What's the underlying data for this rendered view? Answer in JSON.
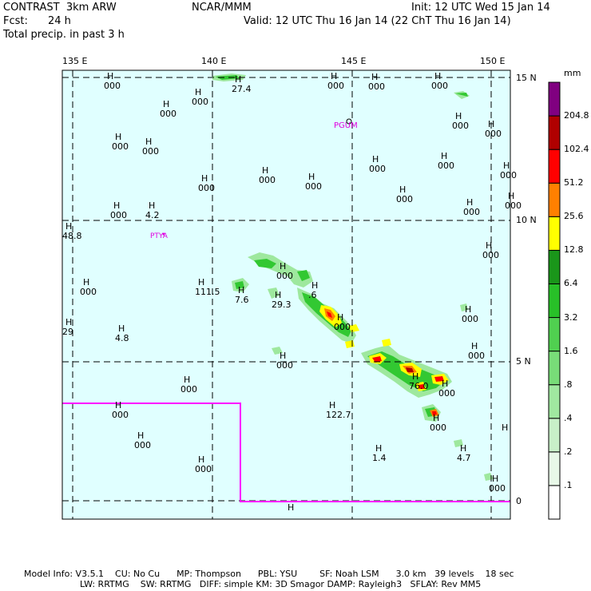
{
  "header": {
    "model": "CONTRAST  3km ARW",
    "center": "NCAR/MMM",
    "init": "Init: 12 UTC Wed 15 Jan 14",
    "fcst_label": "Fcst:",
    "fcst_value": "24 h",
    "valid": "Valid: 12 UTC Thu 16 Jan 14 (22 ChT Thu 16 Jan 14)",
    "field": "Total precip. in past 3 h"
  },
  "map": {
    "ocean_color": "#e0ffff",
    "lon_labels": [
      "135 E",
      "140 E",
      "145 E",
      "150 E"
    ],
    "lat_labels": [
      "15 N",
      "10 N",
      "5 N",
      "0"
    ],
    "places": [
      "PGUM",
      "PTYA"
    ],
    "place_color": "#e000e0",
    "boundary_color": "#ff00ff",
    "h_labels": [
      {
        "s": "000"
      },
      {
        "s": "27.4"
      },
      {
        "s": "000"
      },
      {
        "s": "000"
      },
      {
        "s": "000"
      },
      {
        "s": "000"
      },
      {
        "s": "000"
      },
      {
        "s": "000"
      },
      {
        "s": "000"
      },
      {
        "s": "000"
      },
      {
        "s": "000"
      },
      {
        "s": "000"
      },
      {
        "s": "000"
      },
      {
        "s": "000"
      },
      {
        "s": "000"
      },
      {
        "s": "000"
      },
      {
        "s": "000"
      },
      {
        "s": "000"
      },
      {
        "s": "000"
      },
      {
        "s": "000"
      },
      {
        "s": "000"
      },
      {
        "s": "4.2"
      },
      {
        "s": "000"
      },
      {
        "s": "000"
      },
      {
        "s": "48.8"
      },
      {
        "s": "7.6"
      },
      {
        "s": "29.3"
      },
      {
        "s": ".6"
      },
      {
        "s": "000"
      },
      {
        "s": "000"
      },
      {
        "s": "111.5"
      },
      {
        "s": "000"
      },
      {
        "s": "4.8"
      },
      {
        "s": "000"
      },
      {
        "s": "000"
      },
      {
        "s": "29"
      },
      {
        "s": "76.0"
      },
      {
        "s": "000"
      },
      {
        "s": "000"
      },
      {
        "s": "122.7"
      },
      {
        "s": "000"
      },
      {
        "s": "000"
      },
      {
        "s": "000"
      },
      {
        "s": "000"
      },
      {
        "s": "1.4"
      },
      {
        "s": "4.7"
      },
      {
        "s": "000"
      },
      {
        "s": ""
      },
      {
        "s": ""
      }
    ]
  },
  "colorbar": {
    "unit": "mm",
    "levels": [
      ".1",
      ".2",
      ".4",
      ".8",
      "1.6",
      "3.2",
      "6.4",
      "12.8",
      "25.6",
      "51.2",
      "102.4",
      "204.8"
    ],
    "colors": [
      "#ffffff",
      "#e8f8e8",
      "#c8f0c8",
      "#a0e8a0",
      "#78dc78",
      "#50d050",
      "#28c028",
      "#1a961a",
      "#ffff00",
      "#ff8000",
      "#ff0000",
      "#b00000",
      "#800080"
    ]
  },
  "footer": {
    "line1": "Model Info: V3.5.1    CU: No Cu      MP: Thompson      PBL: YSU        SF: Noah LSM      3.0 km   39 levels    18 sec",
    "line2": "LW: RRTMG    SW: RRTMG   DIFF: simple KM: 3D Smagor DAMP: Rayleigh3   SFLAY: Rev MM5"
  }
}
